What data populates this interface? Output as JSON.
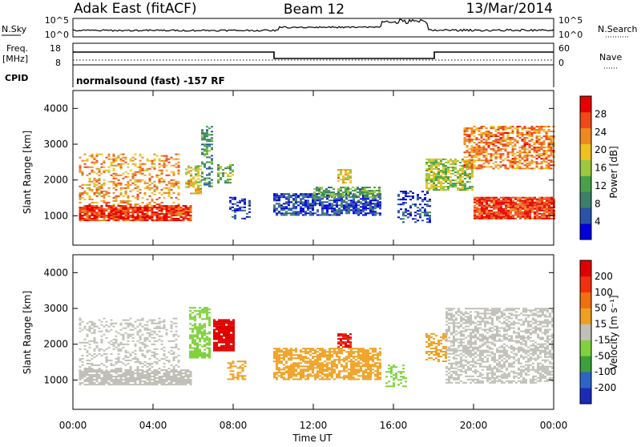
{
  "header": {
    "station": "Adak East (fitACF)",
    "beam": "Beam 12",
    "date": "13/Mar/2014"
  },
  "summary": {
    "nsky_label": "N.Sky",
    "nsearch_label": "N.Search",
    "freq_label": "Freq.",
    "freq_unit": "[MHz]",
    "nave_label": "Nave",
    "cpid_label": "CPID",
    "cpid_text": "normalsound (fast) -157 RF",
    "noise_ticks": [
      "10^5",
      "10^0"
    ],
    "freq_ticks": [
      "18",
      "8"
    ],
    "nave_ticks": [
      "60",
      "0"
    ]
  },
  "colors": {
    "power_scale": [
      "#0000dd",
      "#2a52a8",
      "#3c7f6a",
      "#4aa04a",
      "#9cc840",
      "#f0c020",
      "#f08820",
      "#f04818",
      "#e80000"
    ],
    "velocity_scale": [
      "#1c2ab8",
      "#2d64c8",
      "#3ca03c",
      "#7fd23c",
      "#c0c0b8",
      "#f0a020",
      "#f07010",
      "#f03010",
      "#e00000"
    ],
    "scatter_grey": "#c0c0b8"
  },
  "chart_data": [
    {
      "type": "heatmap",
      "panel": "power",
      "ylabel": "Slant Range [km]",
      "xlabel": "",
      "x_range_hours": [
        0,
        24
      ],
      "ylim_km": [
        180,
        4500
      ],
      "y_ticks": [
        1000,
        2000,
        3000,
        4000
      ],
      "colorbar": {
        "label": "Power [dB]",
        "range": [
          0,
          32
        ],
        "ticks": [
          28,
          24,
          20,
          16,
          12,
          8,
          4
        ]
      },
      "regions": [
        {
          "t0": 0.3,
          "t1": 5.9,
          "r0": 850,
          "r1": 1300,
          "value": 28
        },
        {
          "t0": 0.3,
          "t1": 5.3,
          "r0": 1300,
          "r1": 2700,
          "value": 22,
          "density": 0.35
        },
        {
          "t0": 5.6,
          "t1": 6.4,
          "r0": 1600,
          "r1": 2400,
          "value": 18,
          "density": 0.6
        },
        {
          "t0": 6.4,
          "t1": 7.0,
          "r0": 1800,
          "r1": 3500,
          "value": 10,
          "density": 0.5
        },
        {
          "t0": 7.2,
          "t1": 8.0,
          "r0": 1900,
          "r1": 2400,
          "value": 14,
          "density": 0.5
        },
        {
          "t0": 7.8,
          "t1": 8.8,
          "r0": 900,
          "r1": 1500,
          "value": 4,
          "density": 0.4
        },
        {
          "t0": 10.0,
          "t1": 15.3,
          "r0": 1000,
          "r1": 1600,
          "value": 5,
          "density": 0.7
        },
        {
          "t0": 12.0,
          "t1": 15.3,
          "r0": 1500,
          "r1": 1800,
          "value": 12,
          "density": 0.7
        },
        {
          "t0": 13.2,
          "t1": 13.8,
          "r0": 1900,
          "r1": 2300,
          "value": 20,
          "density": 0.7
        },
        {
          "t0": 16.2,
          "t1": 17.8,
          "r0": 800,
          "r1": 1700,
          "value": 4,
          "density": 0.35
        },
        {
          "t0": 17.6,
          "t1": 20.0,
          "r0": 1700,
          "r1": 2600,
          "value": 16,
          "density": 0.7
        },
        {
          "t0": 20.0,
          "t1": 24.0,
          "r0": 900,
          "r1": 1500,
          "value": 28,
          "density": 0.9
        },
        {
          "t0": 19.5,
          "t1": 24.0,
          "r0": 2300,
          "r1": 3500,
          "value": 24,
          "density": 0.6
        }
      ]
    },
    {
      "type": "heatmap",
      "panel": "velocity",
      "ylabel": "Slant Range [km]",
      "xlabel": "Time UT",
      "x_range_hours": [
        0,
        24
      ],
      "x_ticks": [
        "00:00",
        "04:00",
        "08:00",
        "12:00",
        "16:00",
        "20:00",
        "00:00"
      ],
      "ylim_km": [
        180,
        4500
      ],
      "y_ticks": [
        1000,
        2000,
        3000,
        4000
      ],
      "colorbar": {
        "label": "Velocity [m s⁻¹]",
        "range": [
          -250,
          250
        ],
        "ticks": [
          "200",
          "100",
          "50",
          "15",
          "-15",
          "-50",
          "-100",
          "-200"
        ]
      },
      "regions": [
        {
          "t0": 0.3,
          "t1": 5.9,
          "r0": 850,
          "r1": 1300,
          "value": 0
        },
        {
          "t0": 0.3,
          "t1": 5.3,
          "r0": 1300,
          "r1": 2700,
          "value": 0,
          "density": 0.3
        },
        {
          "t0": 5.8,
          "t1": 6.8,
          "r0": 1600,
          "r1": 3000,
          "value": -60,
          "density": 0.6
        },
        {
          "t0": 7.0,
          "t1": 8.0,
          "r0": 1800,
          "r1": 2700,
          "value": 220,
          "density": 0.9
        },
        {
          "t0": 7.7,
          "t1": 8.6,
          "r0": 1000,
          "r1": 1500,
          "value": 60,
          "density": 0.5
        },
        {
          "t0": 10.0,
          "t1": 15.3,
          "r0": 1000,
          "r1": 1900,
          "value": 60,
          "density": 0.7
        },
        {
          "t0": 13.2,
          "t1": 13.8,
          "r0": 1900,
          "r1": 2300,
          "value": 200,
          "density": 0.7
        },
        {
          "t0": 15.6,
          "t1": 16.6,
          "r0": 800,
          "r1": 1400,
          "value": -60,
          "density": 0.4
        },
        {
          "t0": 17.6,
          "t1": 18.6,
          "r0": 1500,
          "r1": 2300,
          "value": 60,
          "density": 0.5
        },
        {
          "t0": 18.6,
          "t1": 24.0,
          "r0": 900,
          "r1": 3000,
          "value": 0,
          "density": 0.55
        }
      ]
    }
  ]
}
